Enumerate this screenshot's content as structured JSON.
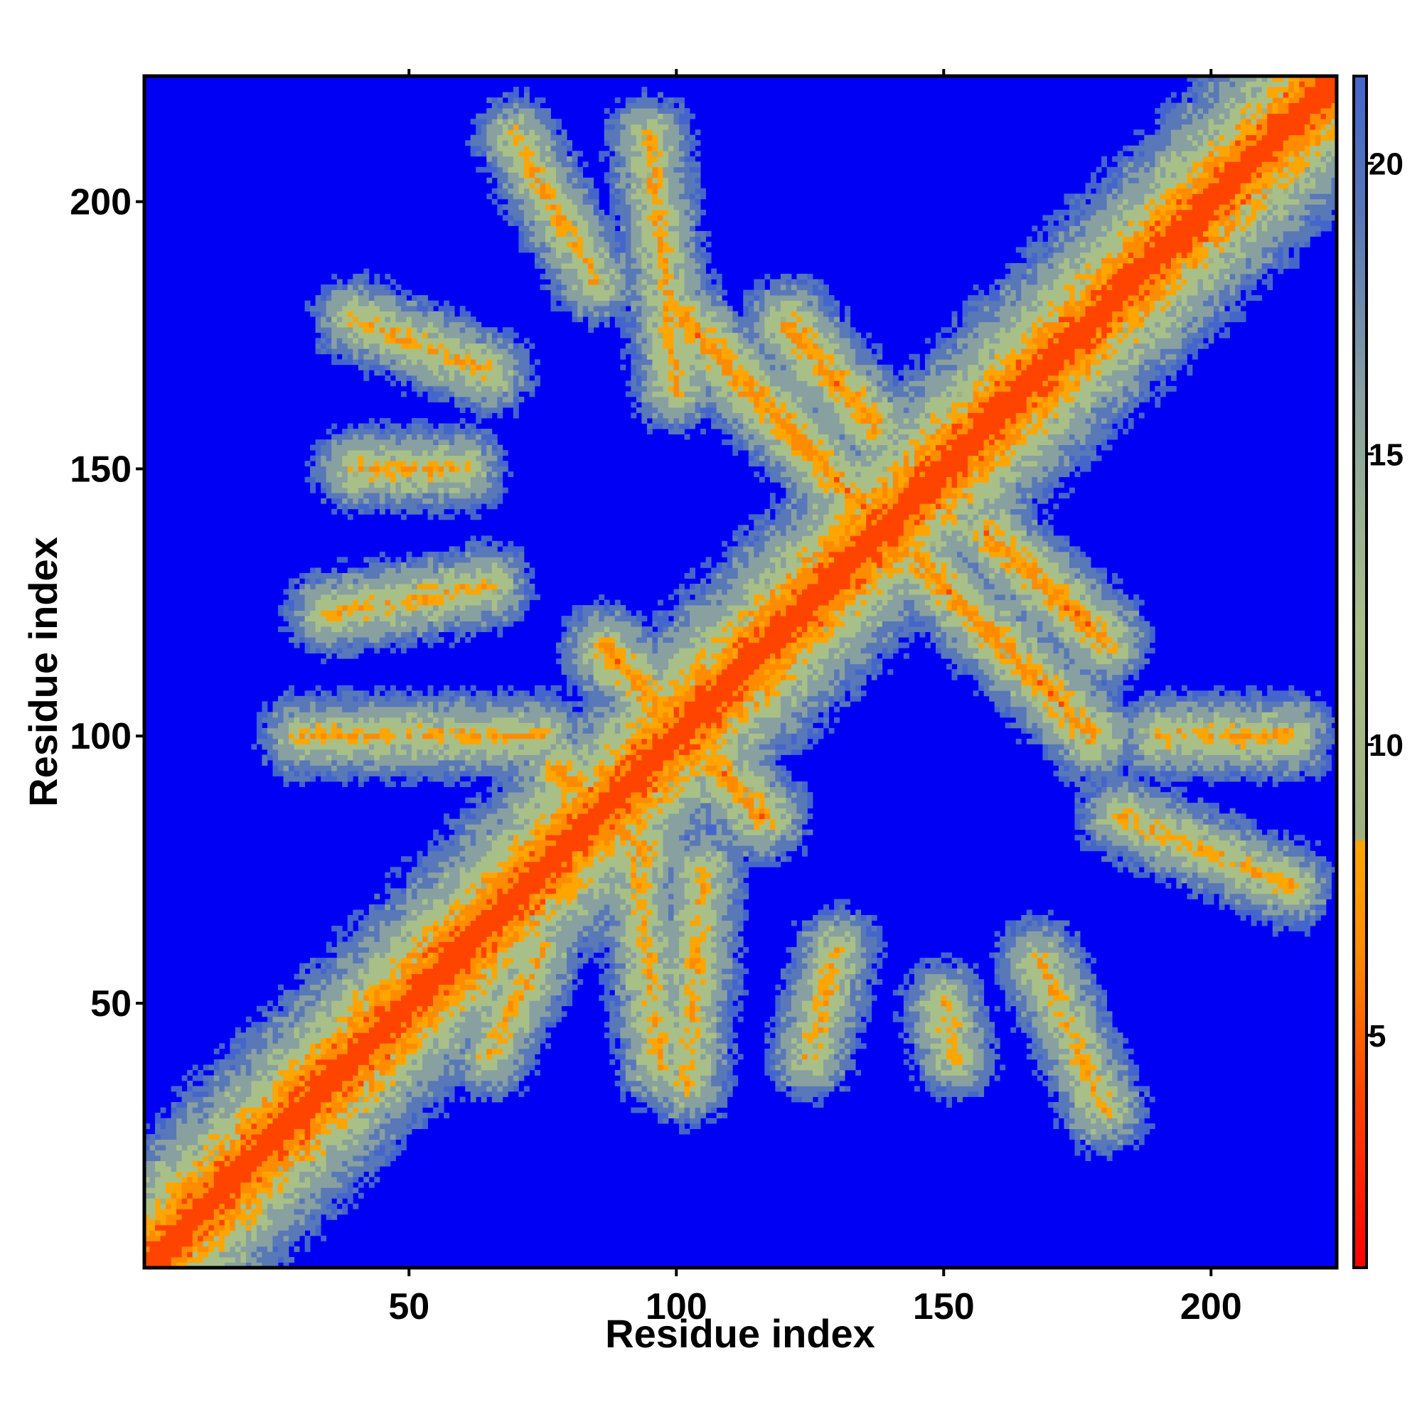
{
  "chart_data": {
    "type": "heatmap",
    "title": "",
    "xlabel": "Residue index",
    "ylabel": "Residue index",
    "xlim": [
      1,
      223
    ],
    "ylim": [
      1,
      223
    ],
    "x_ticks": [
      50,
      100,
      150,
      200
    ],
    "y_ticks": [
      50,
      100,
      150,
      200
    ],
    "x_tick_labels": [
      "50",
      "100",
      "150",
      "200"
    ],
    "y_tick_labels": [
      "50",
      "100",
      "150",
      "200"
    ],
    "colorbar": {
      "range": [
        1,
        21.5
      ],
      "ticks": [
        5,
        10,
        15,
        20
      ],
      "tick_labels": [
        "5",
        "10",
        "15",
        "20"
      ],
      "stops": [
        {
          "value": 1,
          "color": "#ff0000"
        },
        {
          "value": 4,
          "color": "#ff4400"
        },
        {
          "value": 6.5,
          "color": "#ff8c00"
        },
        {
          "value": 8.3,
          "color": "#ffa500"
        },
        {
          "value": 8.4,
          "color": "#a0b080"
        },
        {
          "value": 12,
          "color": "#a8c088"
        },
        {
          "value": 16,
          "color": "#88a0a0"
        },
        {
          "value": 19,
          "color": "#5878b8"
        },
        {
          "value": 21.5,
          "color": "#4466cc"
        }
      ],
      "background_color": "#0000f5"
    },
    "features": [
      {
        "kind": "diagonal",
        "from": 1,
        "to": 223
      },
      {
        "kind": "anti",
        "x1": 101,
        "y1": 178,
        "x2": 138,
        "y2": 140
      },
      {
        "kind": "anti",
        "x1": 121,
        "y1": 177,
        "x2": 137,
        "y2": 158
      },
      {
        "kind": "anti",
        "x1": 138,
        "y1": 140,
        "x2": 178,
        "y2": 100
      },
      {
        "kind": "anti",
        "x1": 158,
        "y1": 138,
        "x2": 180,
        "y2": 118
      },
      {
        "kind": "anti",
        "x1": 87,
        "y1": 116,
        "x2": 101,
        "y2": 101
      },
      {
        "kind": "anti",
        "x1": 101,
        "y1": 101,
        "x2": 116,
        "y2": 85
      },
      {
        "kind": "anti",
        "x1": 78,
        "y1": 94,
        "x2": 94,
        "y2": 78
      },
      {
        "kind": "arc",
        "x1": 40,
        "y1": 178,
        "x2": 65,
        "y2": 168
      },
      {
        "kind": "arc",
        "x1": 40,
        "y1": 150,
        "x2": 60,
        "y2": 150
      },
      {
        "kind": "arc",
        "x1": 35,
        "y1": 123,
        "x2": 65,
        "y2": 128
      },
      {
        "kind": "arc",
        "x1": 30,
        "y1": 100,
        "x2": 75,
        "y2": 100
      },
      {
        "kind": "arc",
        "x1": 70,
        "y1": 212,
        "x2": 85,
        "y2": 185
      },
      {
        "kind": "arc",
        "x1": 95,
        "y1": 212,
        "x2": 100,
        "y2": 165
      },
      {
        "kind": "arc",
        "x1": 183,
        "y1": 85,
        "x2": 215,
        "y2": 72
      },
      {
        "kind": "arc",
        "x1": 190,
        "y1": 100,
        "x2": 215,
        "y2": 100
      },
      {
        "kind": "arc",
        "x1": 130,
        "y1": 60,
        "x2": 125,
        "y2": 40
      },
      {
        "kind": "arc",
        "x1": 150,
        "y1": 50,
        "x2": 152,
        "y2": 40
      },
      {
        "kind": "arc",
        "x1": 168,
        "y1": 58,
        "x2": 180,
        "y2": 30
      },
      {
        "kind": "arc",
        "x1": 92,
        "y1": 80,
        "x2": 97,
        "y2": 38
      },
      {
        "kind": "arc",
        "x1": 75,
        "y1": 60,
        "x2": 65,
        "y2": 40
      },
      {
        "kind": "arc",
        "x1": 105,
        "y1": 75,
        "x2": 102,
        "y2": 35
      }
    ]
  }
}
